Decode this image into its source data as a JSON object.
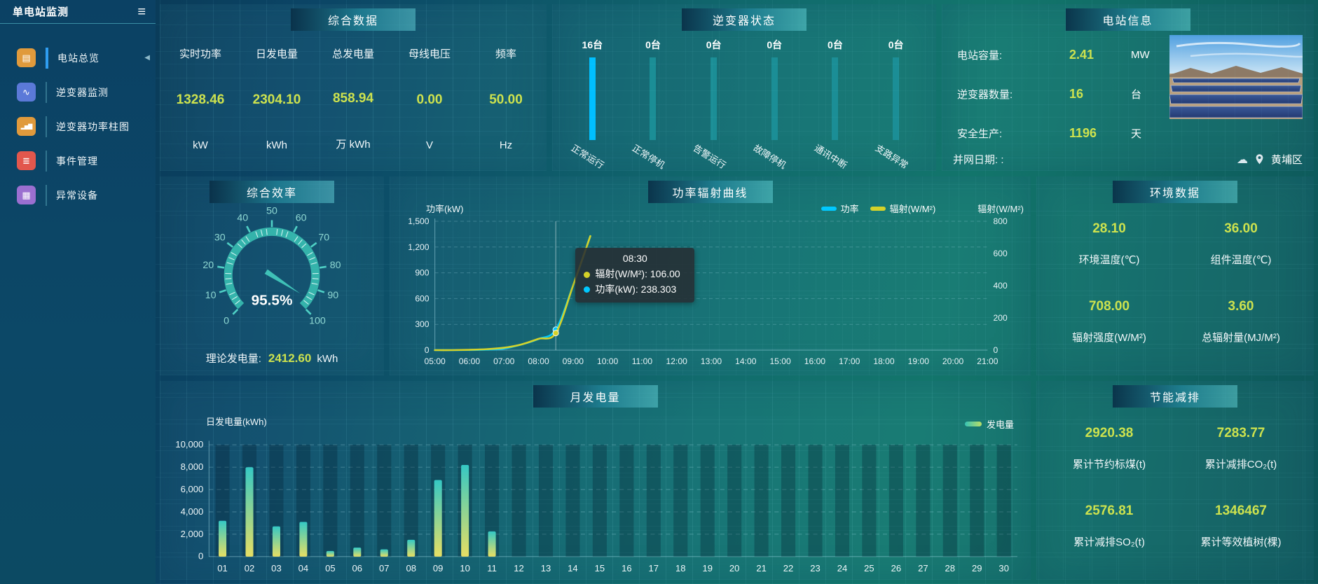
{
  "app": {
    "title": "单电站监测",
    "menu_icon": "≡"
  },
  "colors": {
    "value_yellow": "#cde24e",
    "power_line": "#00c8ff",
    "radiation_line": "#d4d229",
    "bar_highlight": "#00bfff",
    "bar_normal": "#1b8e96",
    "gauge": "#3fc1b7"
  },
  "sidebar": {
    "items": [
      {
        "label": "电站总览",
        "icon": "overview-icon",
        "color": "#e09a3c",
        "glyph": "▤",
        "active": true
      },
      {
        "label": "逆变器监测",
        "icon": "inverter-monitor-icon",
        "color": "#5b79d8",
        "glyph": "∿",
        "active": false
      },
      {
        "label": "逆变器功率柱图",
        "icon": "inverter-power-bars-icon",
        "color": "#e09a3c",
        "glyph": "▂▅▇",
        "active": false
      },
      {
        "label": "事件管理",
        "icon": "event-management-icon",
        "color": "#e2574d",
        "glyph": "≣",
        "active": false
      },
      {
        "label": "异常设备",
        "icon": "abnormal-device-icon",
        "color": "#9b6fd0",
        "glyph": "▦",
        "active": false
      }
    ],
    "collapse_arrow": "◀"
  },
  "summary": {
    "title": "综合数据",
    "metrics": [
      {
        "label": "实时功率",
        "value": "1328.46",
        "unit": "kW"
      },
      {
        "label": "日发电量",
        "value": "2304.10",
        "unit": "kWh"
      },
      {
        "label": "总发电量",
        "value": "858.94",
        "unit": "万 kWh"
      },
      {
        "label": "母线电压",
        "value": "0.00",
        "unit": "V"
      },
      {
        "label": "频率",
        "value": "50.00",
        "unit": "Hz"
      }
    ]
  },
  "inverter_status": {
    "title": "逆变器状态",
    "bars": [
      {
        "count": "16台",
        "label": "正常运行",
        "highlight": true
      },
      {
        "count": "0台",
        "label": "正常停机",
        "highlight": false
      },
      {
        "count": "0台",
        "label": "告警运行",
        "highlight": false
      },
      {
        "count": "0台",
        "label": "故障停机",
        "highlight": false
      },
      {
        "count": "0台",
        "label": "通讯中断",
        "highlight": false
      },
      {
        "count": "0台",
        "label": "支路异常",
        "highlight": false
      }
    ]
  },
  "station_info": {
    "title": "电站信息",
    "rows": [
      {
        "label": "电站容量:",
        "value": "2.41",
        "unit": "MW"
      },
      {
        "label": "逆变器数量:",
        "value": "16",
        "unit": "台"
      },
      {
        "label": "安全生产:",
        "value": "1196",
        "unit": "天"
      }
    ],
    "grid_date": "并网日期:  :",
    "cloud_icon": "☁",
    "location": "黄埔区"
  },
  "efficiency": {
    "title": "综合效率",
    "theory_label": "理论发电量:",
    "theory_value": "2412.60",
    "theory_unit": "kWh"
  },
  "power_panel": {
    "title": "功率辐射曲线",
    "left_axis_name": "功率(kW)",
    "right_axis_name": "辐射(W/M²)",
    "legend": [
      {
        "label": "功率",
        "color": "#00c8ff"
      },
      {
        "label": "辐射(W/M²)",
        "color": "#d4d229"
      }
    ]
  },
  "environment": {
    "title": "环境数据",
    "cells": [
      {
        "value": "28.10",
        "label": "环境温度(℃)"
      },
      {
        "value": "36.00",
        "label": "组件温度(℃)"
      },
      {
        "value": "708.00",
        "label": "辐射强度(W/M²)"
      },
      {
        "value": "3.60",
        "label": "总辐射量(MJ/M²)"
      }
    ]
  },
  "month_panel": {
    "title": "月发电量",
    "ylabel": "日发电量(kWh)",
    "legend": "发电量"
  },
  "saving": {
    "title": "节能减排",
    "cells": [
      {
        "value": "2920.38",
        "label": "累计节约标煤(t)"
      },
      {
        "value": "7283.77",
        "label": "累计减排CO₂(t)"
      },
      {
        "value": "2576.81",
        "label": "累计减排SO₂(t)"
      },
      {
        "value": "1346467",
        "label": "累计等效植树(棵)"
      }
    ]
  },
  "chart_data": [
    {
      "id": "power-radiation-curve",
      "type": "line",
      "title": "功率辐射曲线",
      "x_range_hours": [
        5,
        21
      ],
      "x_tick_labels": [
        "05:00",
        "06:00",
        "07:00",
        "08:00",
        "09:00",
        "10:00",
        "11:00",
        "12:00",
        "13:00",
        "14:00",
        "15:00",
        "16:00",
        "17:00",
        "18:00",
        "19:00",
        "20:00",
        "21:00"
      ],
      "left_axis": {
        "label": "功率(kW)",
        "ticks": [
          0,
          300,
          600,
          900,
          1200,
          1500
        ],
        "max": 1500
      },
      "right_axis": {
        "label": "辐射(W/M²)",
        "ticks": [
          0,
          200,
          400,
          600,
          800
        ],
        "max": 800
      },
      "series": [
        {
          "name": "功率",
          "axis": "left",
          "color": "#00c8ff",
          "x": [
            5,
            5.5,
            6,
            6.5,
            7,
            7.5,
            8,
            8.5,
            9,
            9.5
          ],
          "values": [
            0,
            0,
            1,
            5,
            18,
            65,
            130,
            238.3,
            750,
            1328
          ]
        },
        {
          "name": "辐射(W/M²)",
          "axis": "right",
          "color": "#d4d229",
          "x": [
            5,
            5.5,
            6,
            6.5,
            7,
            7.5,
            8,
            8.5,
            9,
            9.5
          ],
          "values": [
            0,
            0,
            2,
            6,
            15,
            35,
            70,
            106,
            400,
            708
          ]
        }
      ],
      "pointer": {
        "x_hour": 8.5,
        "tooltip": {
          "title": "08:30",
          "rows": [
            {
              "dot": "#d4d229",
              "text": "辐射(W/M²): 106.00"
            },
            {
              "dot": "#00c8ff",
              "text": "功率(kW): 238.303"
            }
          ]
        }
      },
      "grid": true,
      "legend_position": "top-right"
    },
    {
      "id": "monthly-generation",
      "type": "bar",
      "title": "月发电量",
      "ylabel": "日发电量(kWh)",
      "legend": "发电量",
      "categories": [
        "01",
        "02",
        "03",
        "04",
        "05",
        "06",
        "07",
        "08",
        "09",
        "10",
        "11",
        "12",
        "13",
        "14",
        "15",
        "16",
        "17",
        "18",
        "19",
        "20",
        "21",
        "22",
        "23",
        "24",
        "25",
        "26",
        "27",
        "28",
        "29",
        "30"
      ],
      "values": [
        3200,
        8000,
        2700,
        3100,
        500,
        800,
        650,
        1500,
        6850,
        8200,
        2250,
        0,
        0,
        0,
        0,
        0,
        0,
        0,
        0,
        0,
        0,
        0,
        0,
        0,
        0,
        0,
        0,
        0,
        0,
        0
      ],
      "yticks": [
        0,
        2000,
        4000,
        6000,
        8000,
        10000
      ],
      "ylim": [
        0,
        10000
      ],
      "grid": true
    },
    {
      "id": "efficiency-gauge",
      "type": "gauge",
      "title": "综合效率",
      "value": 95.5,
      "display": "95.5%",
      "min": 0,
      "max": 100,
      "tick_labels": [
        0,
        10,
        20,
        30,
        40,
        50,
        60,
        70,
        80,
        90,
        100
      ]
    },
    {
      "id": "inverter-status-bars",
      "type": "bar",
      "title": "逆变器状态",
      "categories": [
        "正常运行",
        "正常停机",
        "告警运行",
        "故障停机",
        "通讯中断",
        "支路异常"
      ],
      "values": [
        16,
        0,
        0,
        0,
        0,
        0
      ],
      "unit": "台"
    }
  ]
}
